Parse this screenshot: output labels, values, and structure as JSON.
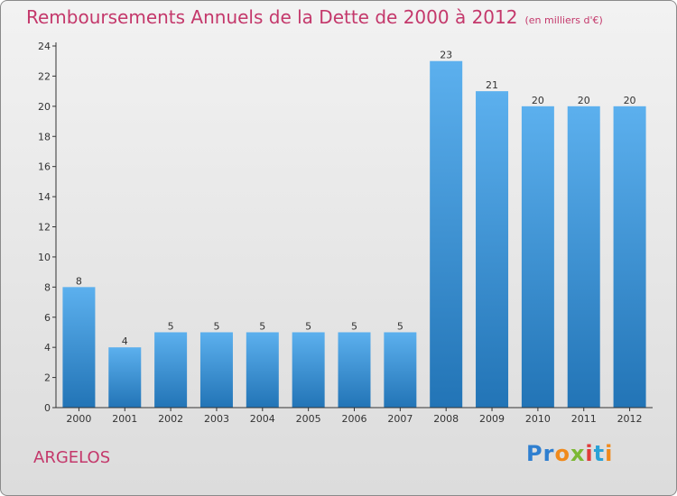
{
  "title": "Remboursements Annuels de la Dette de 2000 à 2012",
  "subtitle": "(en milliers d'€)",
  "commune": "ARGELOS",
  "logo": {
    "letters": [
      "P",
      "r",
      "o",
      "x",
      "i",
      "t",
      "i"
    ],
    "colors": [
      "#2f7fd0",
      "#2f7fd0",
      "#f08a1c",
      "#7cb834",
      "#e03a3a",
      "#2aa1d6",
      "#f08a1c"
    ]
  },
  "colors": {
    "bar": "#3a8fd6",
    "accent": "#c4386b"
  },
  "chart_data": {
    "type": "bar",
    "categories": [
      "2000",
      "2001",
      "2002",
      "2003",
      "2004",
      "2005",
      "2006",
      "2007",
      "2008",
      "2009",
      "2010",
      "2011",
      "2012"
    ],
    "values": [
      8,
      4,
      5,
      5,
      5,
      5,
      5,
      5,
      23,
      21,
      20,
      20,
      20
    ],
    "ylim": [
      0,
      24
    ],
    "yticks": [
      0,
      2,
      4,
      6,
      8,
      10,
      12,
      14,
      16,
      18,
      20,
      22,
      24
    ],
    "grid": false,
    "legend": "none"
  }
}
